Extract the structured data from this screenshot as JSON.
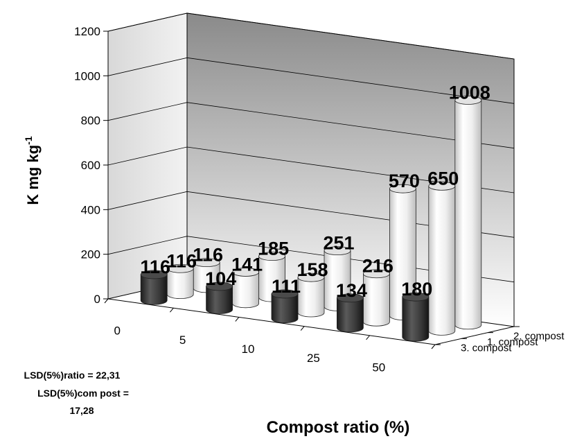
{
  "chart_data": {
    "type": "bar",
    "subtype": "3d-cylinder",
    "categories": [
      "0",
      "5",
      "10",
      "25",
      "50"
    ],
    "series": [
      {
        "name": "3. compost",
        "values": [
          116,
          104,
          111,
          134,
          180
        ],
        "color": "#3c3c3c"
      },
      {
        "name": "1. compost",
        "values": [
          116,
          141,
          158,
          216,
          650
        ],
        "color": "#f4f4f4"
      },
      {
        "name": "2. compost",
        "values": [
          116,
          185,
          251,
          570,
          1008
        ],
        "color": "#f4f4f4"
      }
    ],
    "xlabel": "Compost ratio (%)",
    "ylabel": "K mg kg",
    "ylabel_superscript": "-1",
    "ylim": [
      0,
      1200
    ],
    "yticks": [
      0,
      200,
      400,
      600,
      800,
      1000,
      1200
    ],
    "grid": true,
    "data_labels": true
  },
  "notes": {
    "lsd_ratio": "LSD(5%)ratio = 22,31",
    "lsd_compost_1": "LSD(5%)com post =",
    "lsd_compost_2": "17,28"
  }
}
